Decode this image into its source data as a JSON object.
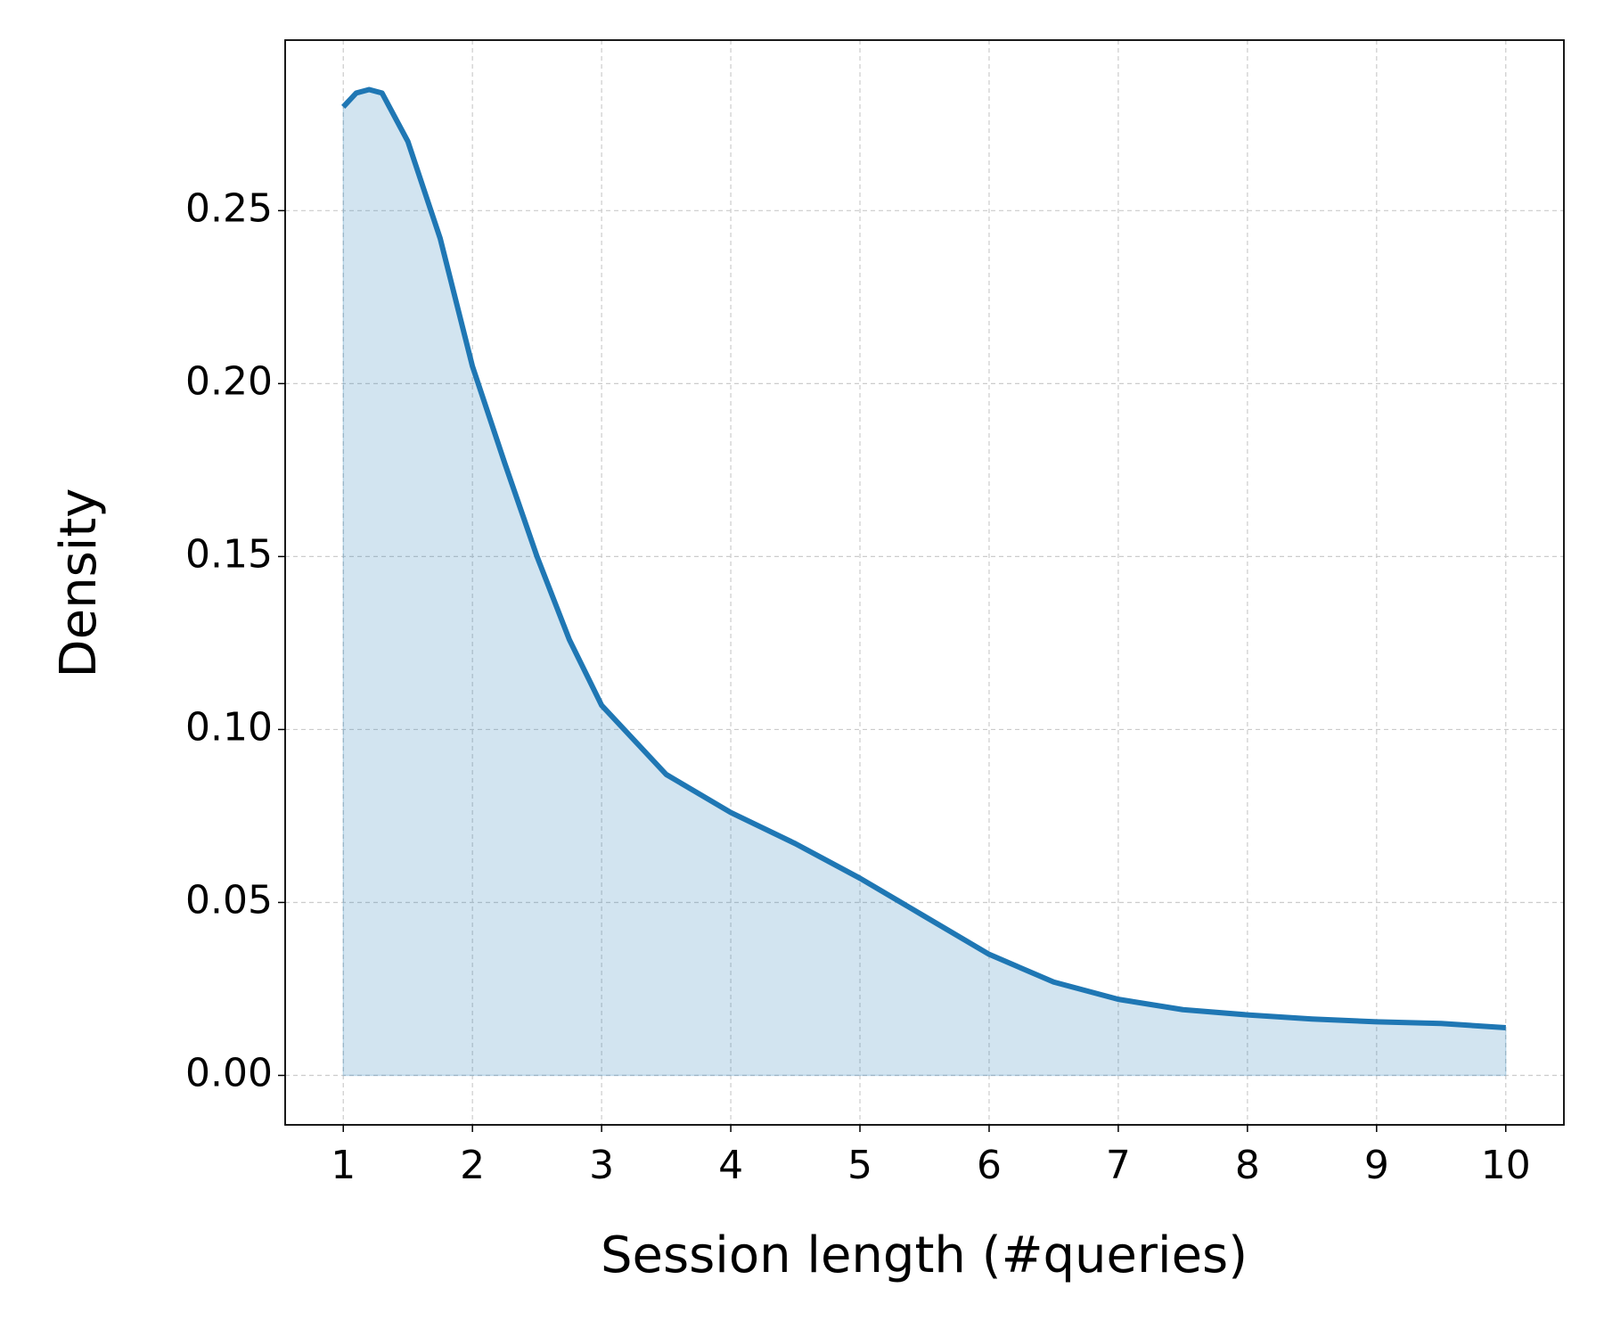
{
  "chart_data": {
    "type": "area",
    "x_label": "Session length (#queries)",
    "y_label": "Density",
    "x": [
      1.0,
      1.1,
      1.2,
      1.3,
      1.5,
      1.75,
      2.0,
      2.25,
      2.5,
      2.75,
      3.0,
      3.5,
      4.0,
      4.5,
      5.0,
      5.5,
      6.0,
      6.5,
      7.0,
      7.5,
      8.0,
      8.5,
      9.0,
      9.5,
      10.0
    ],
    "series": [
      {
        "name": "Density",
        "color": "#1f77b4",
        "values": [
          0.28,
          0.284,
          0.285,
          0.284,
          0.27,
          0.242,
          0.205,
          0.177,
          0.15,
          0.126,
          0.107,
          0.087,
          0.076,
          0.067,
          0.057,
          0.046,
          0.035,
          0.027,
          0.022,
          0.019,
          0.0175,
          0.0163,
          0.0155,
          0.015,
          0.0138
        ]
      }
    ],
    "xlim": [
      0.55,
      10.45
    ],
    "ylim": [
      -0.0143,
      0.2993
    ],
    "xticks": [
      1,
      2,
      3,
      4,
      5,
      6,
      7,
      8,
      9,
      10
    ],
    "yticks": [
      {
        "value": 0,
        "label": "0.00"
      },
      0.05,
      {
        "value": 0.1,
        "label": "0.10"
      },
      0.15,
      {
        "value": 0.2,
        "label": "0.20"
      },
      0.25
    ],
    "grid": true
  }
}
